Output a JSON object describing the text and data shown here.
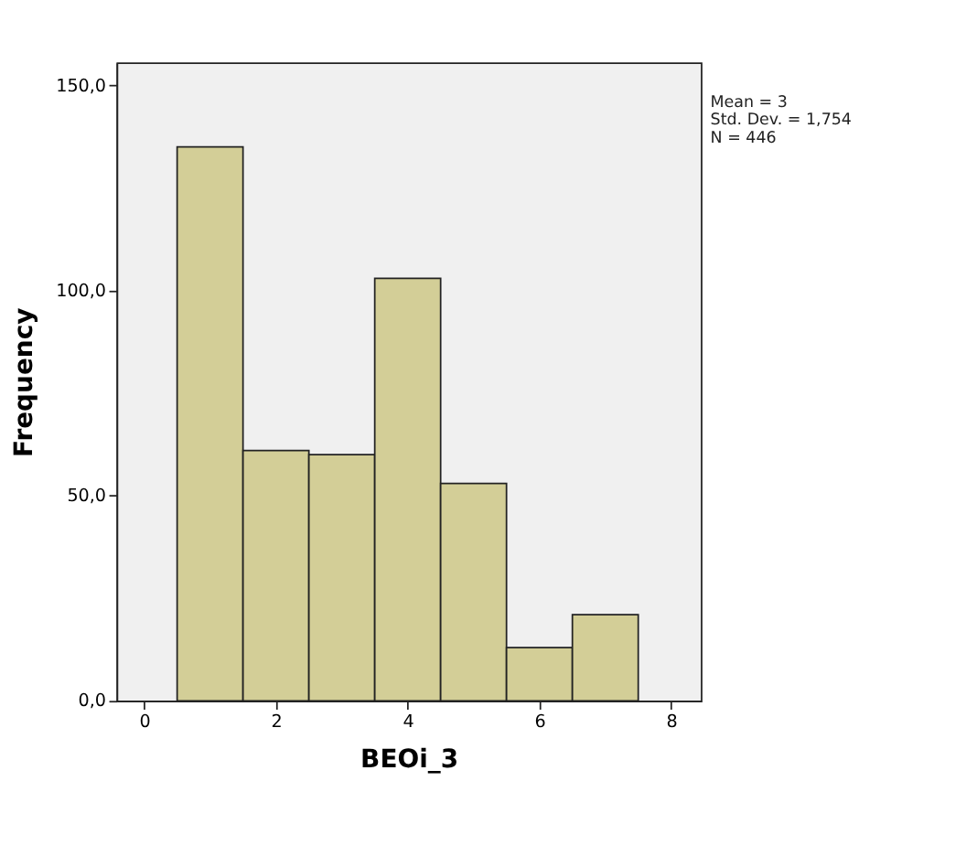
{
  "chart_data": {
    "type": "histogram",
    "xlabel": "BEOi_3",
    "ylabel": "Frequency",
    "bins": [
      0.5,
      1.5,
      2.5,
      3.5,
      4.5,
      5.5,
      6.5,
      7.5
    ],
    "values": [
      135,
      61,
      60,
      103,
      53,
      13,
      21
    ],
    "color": "#d3ce97",
    "xlim": [
      -0.42,
      8.45
    ],
    "xticks": [
      0,
      2,
      4,
      6,
      8
    ],
    "ylim": [
      0,
      155.6
    ],
    "yticks": [
      {
        "value": 0,
        "label": "0,0"
      },
      {
        "value": 50,
        "label": "50,0"
      },
      {
        "value": 100,
        "label": "100,0"
      },
      {
        "value": 150,
        "label": "150,0"
      }
    ],
    "grid": false,
    "annotations": [
      "Mean = 3",
      "Std. Dev. = 1,754",
      "N = 446"
    ]
  }
}
